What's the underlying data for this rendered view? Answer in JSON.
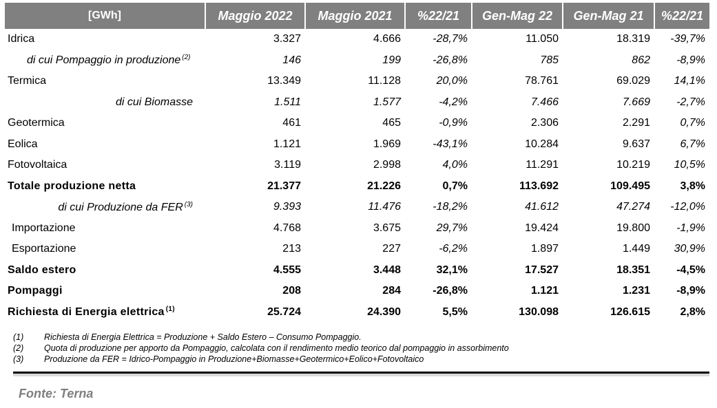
{
  "table": {
    "headers": [
      "[GWh]",
      "Maggio 2022",
      "Maggio 2021",
      "%22/21",
      "Gen-Mag 22",
      "Gen-Mag 21",
      "%22/21"
    ],
    "rows": [
      {
        "label": "Idrica",
        "note": "",
        "style": "normal",
        "values": [
          "3.327",
          "4.666",
          "-28,7%",
          "11.050",
          "18.319",
          "-39,7%"
        ]
      },
      {
        "label": "di cui Pompaggio in produzione",
        "note": "(2)",
        "style": "italic-indent",
        "values": [
          "146",
          "199",
          "-26,8%",
          "785",
          "862",
          "-8,9%"
        ]
      },
      {
        "label": "Termica",
        "note": "",
        "style": "normal",
        "values": [
          "13.349",
          "11.128",
          "20,0%",
          "78.761",
          "69.029",
          "14,1%"
        ]
      },
      {
        "label": "di cui Biomasse",
        "note": "",
        "style": "italic-right",
        "values": [
          "1.511",
          "1.577",
          "-4,2%",
          "7.466",
          "7.669",
          "-2,7%"
        ]
      },
      {
        "label": "Geotermica",
        "note": "",
        "style": "normal",
        "values": [
          "461",
          "465",
          "-0,9%",
          "2.306",
          "2.291",
          "0,7%"
        ]
      },
      {
        "label": "Eolica",
        "note": "",
        "style": "normal",
        "values": [
          "1.121",
          "1.969",
          "-43,1%",
          "10.284",
          "9.637",
          "6,7%"
        ]
      },
      {
        "label": "Fotovoltaica",
        "note": "",
        "style": "normal",
        "values": [
          "3.119",
          "2.998",
          "4,0%",
          "11.291",
          "10.219",
          "10,5%"
        ]
      },
      {
        "label": "Totale produzione netta",
        "note": "",
        "style": "bold",
        "values": [
          "21.377",
          "21.226",
          "0,7%",
          "113.692",
          "109.495",
          "3,8%"
        ]
      },
      {
        "label": "di cui Produzione da FER",
        "note": "(3)",
        "style": "italic-right",
        "values": [
          "9.393",
          "11.476",
          "-18,2%",
          "41.612",
          "47.274",
          "-12,0%"
        ]
      },
      {
        "label": "Importazione",
        "note": "",
        "style": "indent",
        "values": [
          "4.768",
          "3.675",
          "29,7%",
          "19.424",
          "19.800",
          "-1,9%"
        ]
      },
      {
        "label": "Esportazione",
        "note": "",
        "style": "indent",
        "values": [
          "213",
          "227",
          "-6,2%",
          "1.897",
          "1.449",
          "30,9%"
        ]
      },
      {
        "label": "Saldo estero",
        "note": "",
        "style": "bold",
        "values": [
          "4.555",
          "3.448",
          "32,1%",
          "17.527",
          "18.351",
          "-4,5%"
        ]
      },
      {
        "label": "Pompaggi",
        "note": "",
        "style": "bold",
        "values": [
          "208",
          "284",
          "-26,8%",
          "1.121",
          "1.231",
          "-8,9%"
        ]
      },
      {
        "label": "Richiesta di Energia elettrica",
        "note": "(1)",
        "style": "bold",
        "values": [
          "25.724",
          "24.390",
          "5,5%",
          "130.098",
          "126.615",
          "2,8%"
        ]
      }
    ]
  },
  "notes": [
    {
      "num": "(1)",
      "text": "Richiesta di Energia Elettrica = Produzione  + Saldo Estero  – Consumo  Pompaggio."
    },
    {
      "num": "(2)",
      "text": "Quota di produzione  per apporto  da Pompaggio,   calcolata con il rendimento   medio teorico dal pompaggio   in assorbimento"
    },
    {
      "num": "(3)",
      "text": "Produzione  da FER = Idrico-Pompaggio   in Produzione+Biomasse+Geotermico+Eolico+Fotovoltaico"
    }
  ],
  "source": "Fonte: Terna"
}
